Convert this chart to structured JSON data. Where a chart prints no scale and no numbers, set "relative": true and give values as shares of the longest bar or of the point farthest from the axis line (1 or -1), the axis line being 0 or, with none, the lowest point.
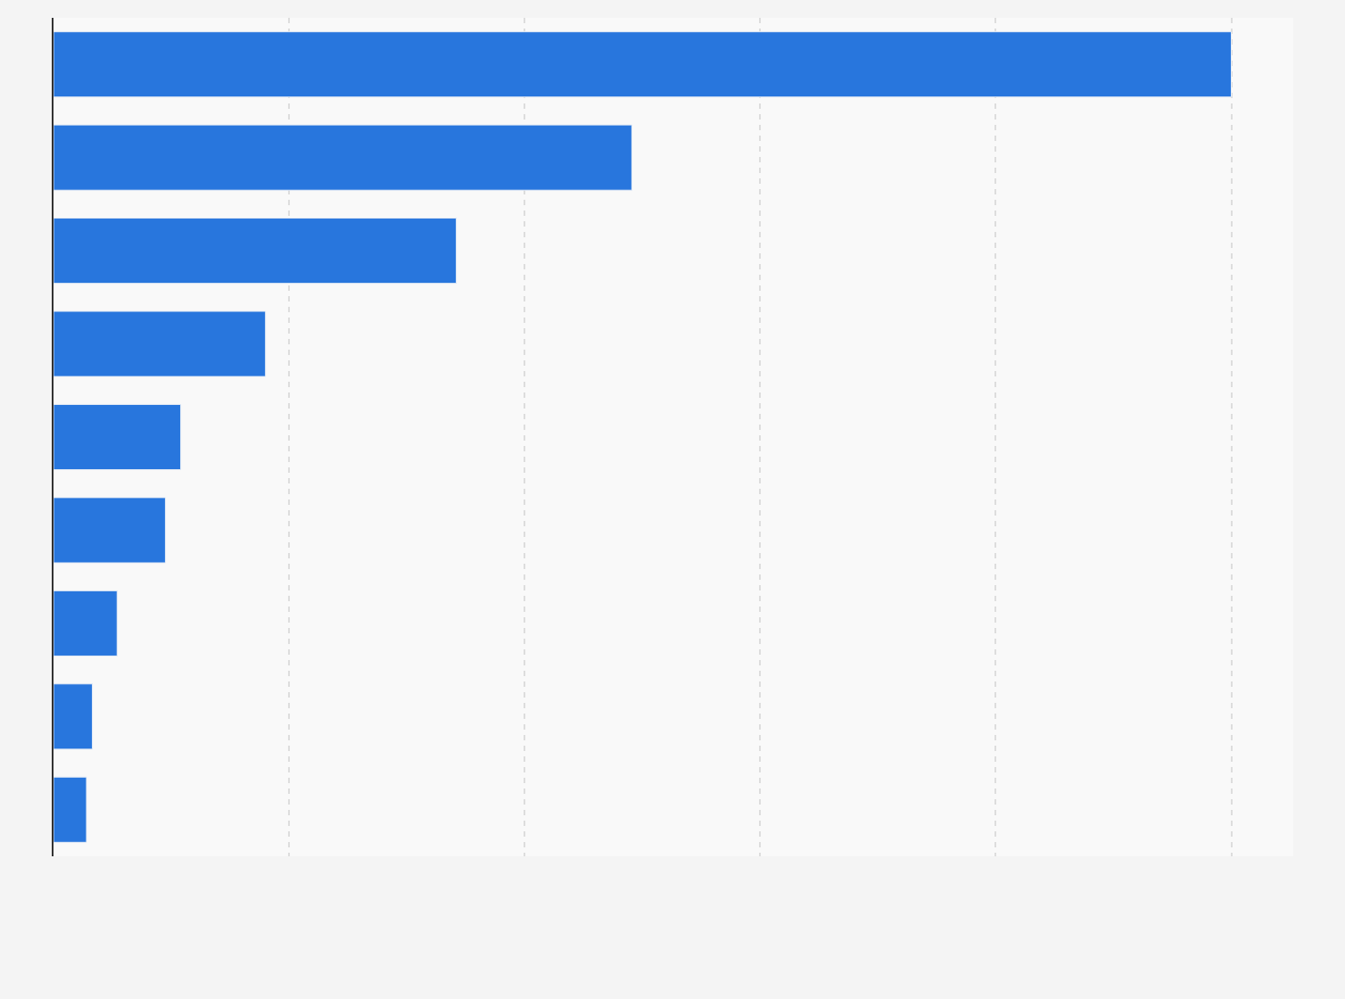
{
  "chart_data": {
    "type": "bar",
    "orientation": "horizontal",
    "relative": true,
    "grid": "x",
    "categories": [
      null,
      null,
      null,
      null,
      null,
      null,
      null,
      null,
      null
    ],
    "values": [
      1,
      0.491,
      0.342,
      0.18,
      0.108,
      0.095,
      0.054,
      0.033,
      0.028
    ],
    "color": "#2876dd"
  }
}
